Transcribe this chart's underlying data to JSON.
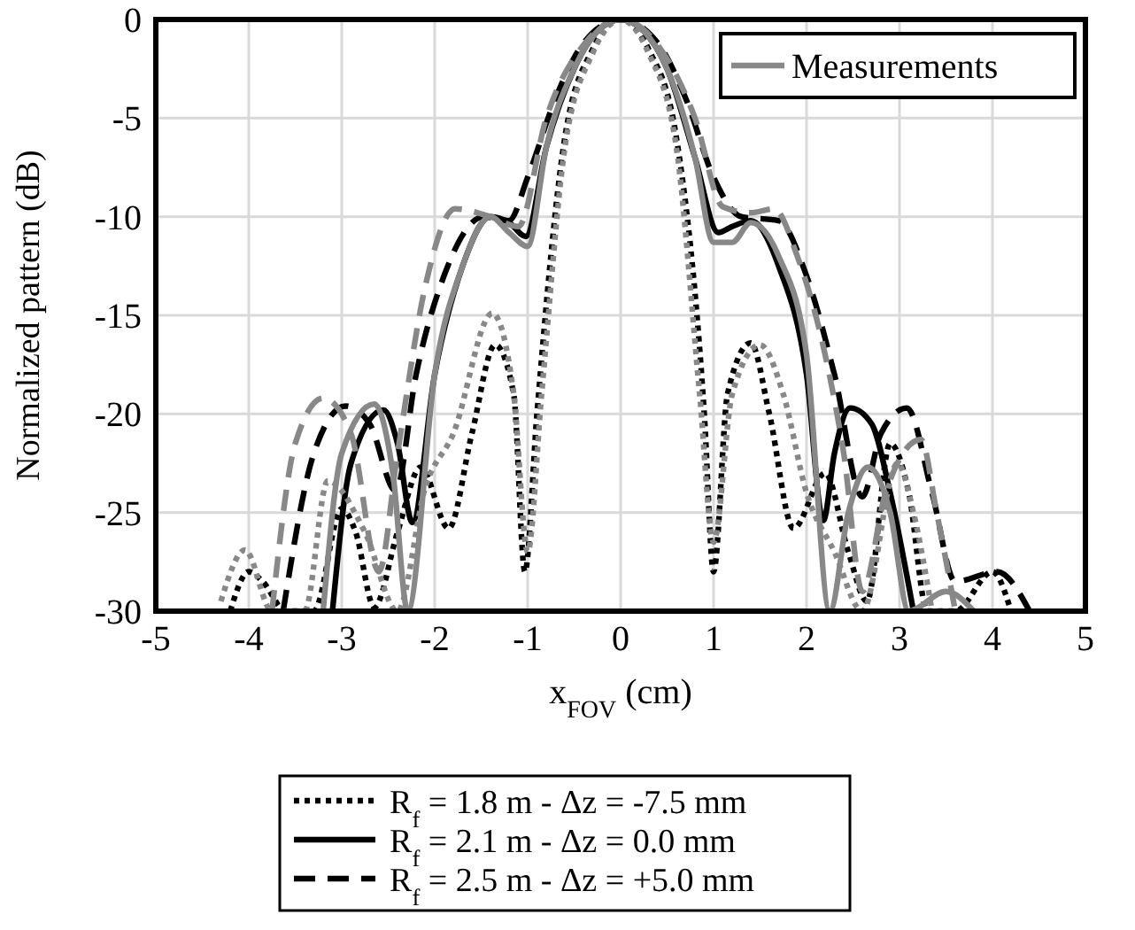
{
  "chart_data": {
    "type": "line",
    "xlabel": "x$_{FOV}$ (cm)",
    "ylabel": "Normalized pattern (dB)",
    "xlim": [
      -5,
      5
    ],
    "ylim": [
      -30,
      0
    ],
    "xticks": [
      -5,
      -4,
      -3,
      -2,
      -1,
      0,
      1,
      2,
      3,
      4,
      5
    ],
    "yticks": [
      -30,
      -25,
      -20,
      -15,
      -10,
      -5,
      0
    ],
    "grid": true,
    "legend": "top right",
    "series": [
      {
        "color": "#000000",
        "line_style": "dotted",
        "x": [
          -4.2,
          -4.0,
          -3.85,
          -3.6,
          -3.3,
          -3.0,
          -2.85,
          -2.65,
          -2.4,
          -2.15,
          -1.85,
          -1.6,
          -1.35,
          -1.15,
          -1.03,
          -0.9,
          -0.6,
          -0.3,
          0,
          0.3,
          0.6,
          0.9,
          1.0,
          1.15,
          1.4,
          1.6,
          1.86,
          2.2,
          2.45,
          2.65,
          2.9,
          3.1,
          3.3,
          3.6,
          4.0,
          4.2
        ],
        "values": [
          -30,
          -28,
          -28.5,
          -30,
          -30,
          -24.8,
          -26,
          -29.8,
          -26,
          -22.7,
          -25.8,
          -21,
          -16.5,
          -19,
          -28,
          -20,
          -6,
          -1.5,
          0,
          -1.5,
          -6,
          -20,
          -28,
          -19,
          -16.4,
          -20,
          -25.8,
          -23,
          -27,
          -29.5,
          -21.5,
          -24,
          -30,
          -30,
          -28,
          -30
        ]
      },
      {
        "color": "#000000",
        "line_style": "solid",
        "x": [
          -3.1,
          -2.9,
          -2.55,
          -2.4,
          -2.24,
          -2.0,
          -1.7,
          -1.4,
          -1.2,
          -1.02,
          -0.8,
          -0.5,
          -0.25,
          0,
          0.25,
          0.5,
          0.8,
          1.05,
          1.2,
          1.4,
          1.7,
          2.0,
          2.18,
          2.3,
          2.47,
          2.7,
          2.9,
          3.15
        ],
        "values": [
          -30,
          -22.5,
          -19.8,
          -21.5,
          -25.5,
          -18,
          -12.5,
          -10,
          -10.3,
          -11,
          -6.5,
          -2.5,
          -0.6,
          0,
          -0.6,
          -2.5,
          -7,
          -10.8,
          -10.5,
          -10.2,
          -12.5,
          -18,
          -25.4,
          -22,
          -19.7,
          -20.5,
          -24,
          -30
        ]
      },
      {
        "color": "#000000",
        "line_style": "dashed",
        "x": [
          -3.63,
          -3.3,
          -2.96,
          -2.7,
          -2.42,
          -2.2,
          -1.9,
          -1.47,
          -1.2,
          -1.0,
          -0.7,
          -0.4,
          0,
          0.4,
          0.7,
          1.0,
          1.3,
          1.7,
          2.0,
          2.3,
          2.6,
          2.8,
          3.08,
          3.35,
          3.6,
          4.05,
          4.4
        ],
        "values": [
          -30,
          -22,
          -19.6,
          -20.5,
          -23.9,
          -18,
          -13,
          -10,
          -10.2,
          -8,
          -4,
          -1.2,
          0,
          -1.2,
          -4,
          -8,
          -10,
          -10.2,
          -13,
          -18,
          -24.2,
          -21,
          -19.7,
          -24,
          -28.5,
          -28,
          -30
        ]
      },
      {
        "color": "#888888",
        "line_style": "dotted",
        "x": [
          -4.3,
          -4.04,
          -3.75,
          -3.4,
          -3.15,
          -2.75,
          -2.4,
          -2.1,
          -1.8,
          -1.38,
          -1.15,
          -1.0,
          -0.85,
          -0.6,
          -0.3,
          0,
          0.3,
          0.6,
          0.85,
          1.0,
          1.2,
          1.5,
          1.75,
          2.0,
          2.3,
          2.6,
          2.98,
          3.15,
          3.35
        ],
        "values": [
          -29.5,
          -26.9,
          -30,
          -30,
          -23.4,
          -26,
          -30,
          -23.7,
          -21,
          -14.9,
          -19,
          -27,
          -19,
          -6.5,
          -1.7,
          0,
          -1.7,
          -6.5,
          -19,
          -26.5,
          -19,
          -16.5,
          -19,
          -24,
          -27,
          -30,
          -22.5,
          -25,
          -30
        ]
      },
      {
        "name": "Measurements",
        "color": "#888888",
        "line_style": "solid",
        "x": [
          -3.2,
          -3.0,
          -2.65,
          -2.45,
          -2.29,
          -2.0,
          -1.7,
          -1.4,
          -1.2,
          -1.0,
          -0.8,
          -0.5,
          -0.25,
          0,
          0.25,
          0.5,
          0.8,
          1.0,
          1.2,
          1.4,
          1.7,
          2.0,
          2.25,
          2.45,
          2.66,
          2.9,
          3.1,
          3.5,
          3.8
        ],
        "values": [
          -30,
          -22,
          -19.5,
          -23,
          -30,
          -18,
          -12.5,
          -10,
          -10.8,
          -11.5,
          -6.5,
          -2.5,
          -0.6,
          0,
          -0.6,
          -2.5,
          -7,
          -11.3,
          -11.3,
          -10.3,
          -12,
          -17,
          -30,
          -25,
          -22.7,
          -25,
          -30,
          -29,
          -30
        ]
      },
      {
        "color": "#888888",
        "line_style": "dashed",
        "x": [
          -3.75,
          -3.5,
          -3.2,
          -2.9,
          -2.6,
          -2.4,
          -2.1,
          -1.78,
          -1.4,
          -1.1,
          -0.8,
          -0.4,
          0,
          0.4,
          0.8,
          1.1,
          1.4,
          1.65,
          1.9,
          2.2,
          2.4,
          2.6,
          2.85,
          3.23,
          3.4,
          3.6
        ],
        "values": [
          -30,
          -21.5,
          -19.2,
          -21,
          -28,
          -22,
          -13.5,
          -9.6,
          -10,
          -10.5,
          -5,
          -1.3,
          0,
          -1.3,
          -5,
          -9.5,
          -9.8,
          -9.6,
          -12,
          -17,
          -22,
          -29,
          -24,
          -21.3,
          -25,
          -30
        ]
      }
    ],
    "annotations": [
      "R$_{f}$ = 1.8 m - Δz = -7.5 mm",
      "R$_{f}$ = 2.1 m - Δz = 0.0 mm",
      "R$_{f}$ = 2.5 m - Δz = +5.0 mm"
    ]
  }
}
